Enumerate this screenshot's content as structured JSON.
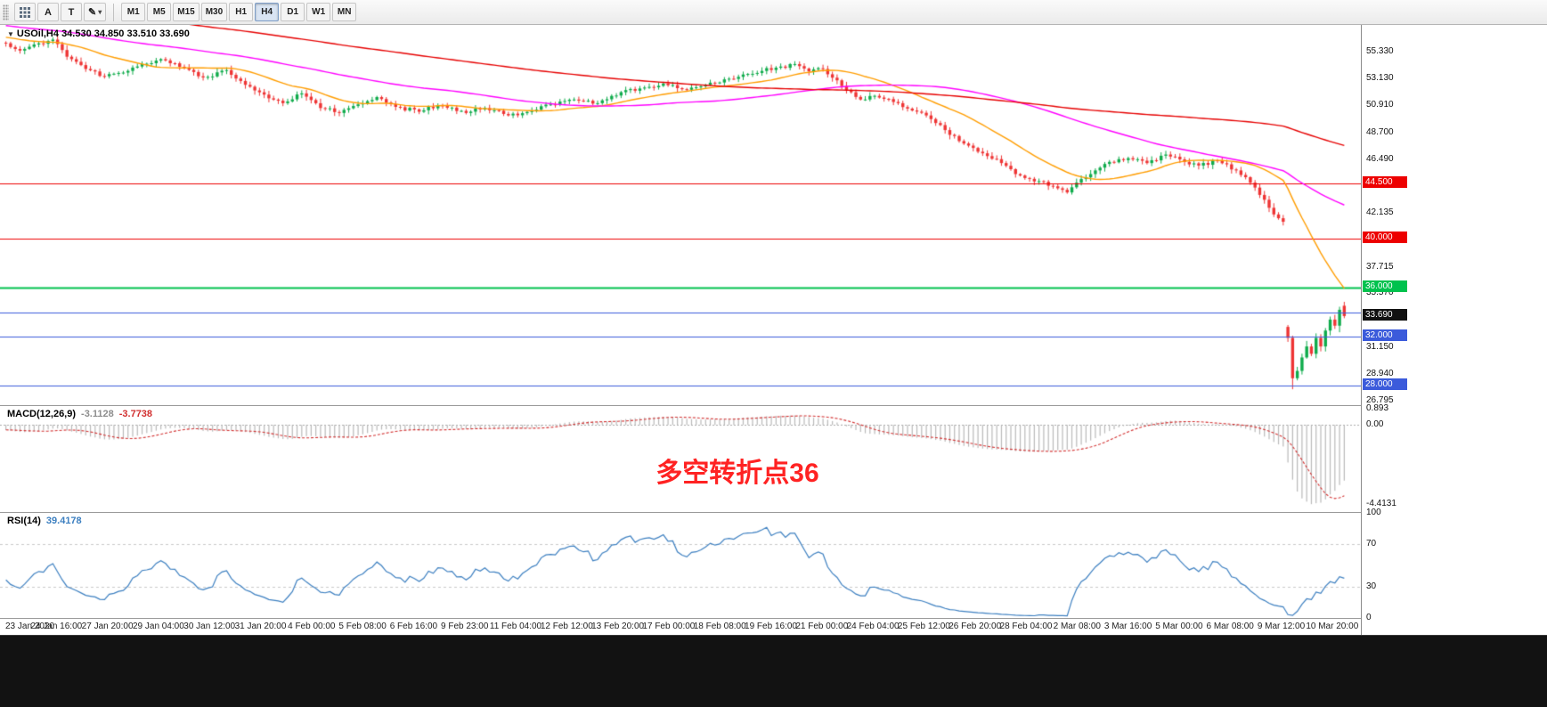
{
  "toolbar": {
    "tools": [
      {
        "name": "grid-tool"
      },
      {
        "name": "text-a-tool",
        "label": "A"
      },
      {
        "name": "text-t-tool",
        "label": "T"
      },
      {
        "name": "draw-tool",
        "glyph": "✎",
        "arrow": "▾"
      }
    ],
    "timeframes": [
      "M1",
      "M5",
      "M15",
      "M30",
      "H1",
      "H4",
      "D1",
      "W1",
      "MN"
    ],
    "active_timeframe": "H4"
  },
  "header": {
    "marker": "▼",
    "symbol": "USOil,H4",
    "ohlc": "34.530 34.850 33.510 33.690"
  },
  "chart_data": {
    "type": "candlestick",
    "symbol": "USOil",
    "timeframe": "H4",
    "title": "USOil,H4 34.530 34.850 33.510 33.690",
    "current_candle": {
      "open": 34.53,
      "high": 34.85,
      "low": 33.51,
      "close": 33.69
    },
    "price_axis": {
      "min": 26.4,
      "max": 57.5,
      "ticks": [
        {
          "label": "55.330",
          "value": 55.33
        },
        {
          "label": "53.130",
          "value": 53.13
        },
        {
          "label": "50.910",
          "value": 50.91
        },
        {
          "label": "48.700",
          "value": 48.7
        },
        {
          "label": "46.490",
          "value": 46.49
        },
        {
          "label": "42.135",
          "value": 42.135
        },
        {
          "label": "37.715",
          "value": 37.715
        },
        {
          "label": "35.570",
          "value": 35.57
        },
        {
          "label": "31.150",
          "value": 31.15
        },
        {
          "label": "28.940",
          "value": 28.94
        },
        {
          "label": "26.795",
          "value": 26.795
        }
      ]
    },
    "horizontal_lines": [
      {
        "price": 44.5,
        "color": "#ed0000",
        "width": 1,
        "badge": "44.500"
      },
      {
        "price": 40.0,
        "color": "#ed0000",
        "width": 1,
        "badge": "40.000"
      },
      {
        "price": 36.0,
        "color": "#00c24e",
        "width": 2,
        "badge": "36.000"
      },
      {
        "price": 34.0,
        "color": "#3b5bdb",
        "width": 1,
        "badge": null
      },
      {
        "price": 32.0,
        "color": "#3b5bdb",
        "width": 1,
        "badge": "32.000"
      },
      {
        "price": 28.0,
        "color": "#3b5bdb",
        "width": 1,
        "badge": "28.000"
      }
    ],
    "current_price_badge": {
      "label": "33.690",
      "value": 33.69,
      "bg": "#111111"
    },
    "moving_averages": [
      {
        "name": "fast-ma",
        "method": "sma",
        "period": 21,
        "color": "#ff9d00"
      },
      {
        "name": "mid-ma",
        "method": "sma",
        "period": 70,
        "color": "#ff00ff"
      },
      {
        "name": "slow-ma",
        "method": "sma",
        "period": 160,
        "color": "#e60000"
      }
    ],
    "candle_up_color": "#0fab4b",
    "candle_down_color": "#ee3434",
    "price_anchors": [
      [
        0,
        56.0
      ],
      [
        3,
        55.4
      ],
      [
        6,
        55.9
      ],
      [
        10,
        56.3
      ],
      [
        13,
        54.9
      ],
      [
        17,
        53.9
      ],
      [
        21,
        53.3
      ],
      [
        25,
        53.6
      ],
      [
        29,
        54.3
      ],
      [
        33,
        54.7
      ],
      [
        38,
        54.0
      ],
      [
        42,
        53.2
      ],
      [
        47,
        53.8
      ],
      [
        51,
        52.6
      ],
      [
        55,
        51.8
      ],
      [
        59,
        51.1
      ],
      [
        63,
        51.9
      ],
      [
        67,
        50.7
      ],
      [
        71,
        50.3
      ],
      [
        75,
        51.0
      ],
      [
        79,
        51.6
      ],
      [
        83,
        50.8
      ],
      [
        88,
        50.4
      ],
      [
        93,
        50.9
      ],
      [
        98,
        50.3
      ],
      [
        102,
        50.7
      ],
      [
        107,
        50.1
      ],
      [
        112,
        50.5
      ],
      [
        116,
        51.0
      ],
      [
        121,
        51.4
      ],
      [
        126,
        51.1
      ],
      [
        131,
        52.0
      ],
      [
        135,
        52.3
      ],
      [
        140,
        52.7
      ],
      [
        145,
        52.2
      ],
      [
        149,
        52.6
      ],
      [
        154,
        53.1
      ],
      [
        159,
        53.5
      ],
      [
        164,
        54.0
      ],
      [
        168,
        54.3
      ],
      [
        171,
        53.7
      ],
      [
        174,
        53.9
      ],
      [
        178,
        52.5
      ],
      [
        182,
        51.4
      ],
      [
        185,
        51.7
      ],
      [
        189,
        51.2
      ],
      [
        193,
        50.5
      ],
      [
        197,
        49.8
      ],
      [
        200,
        48.9
      ],
      [
        204,
        47.8
      ],
      [
        208,
        47.0
      ],
      [
        212,
        46.2
      ],
      [
        215,
        45.3
      ],
      [
        219,
        44.7
      ],
      [
        223,
        44.3
      ],
      [
        226,
        43.8
      ],
      [
        228,
        44.6
      ],
      [
        232,
        45.6
      ],
      [
        235,
        46.3
      ],
      [
        239,
        46.6
      ],
      [
        243,
        46.2
      ],
      [
        247,
        46.9
      ],
      [
        250,
        46.5
      ],
      [
        254,
        46.0
      ],
      [
        258,
        46.4
      ],
      [
        262,
        45.6
      ],
      [
        265,
        44.6
      ],
      [
        268,
        43.2
      ],
      [
        270,
        42.0
      ],
      [
        272,
        41.4
      ],
      [
        273,
        31.9
      ],
      [
        274,
        28.6
      ],
      [
        275,
        29.2
      ],
      [
        276,
        30.3
      ],
      [
        277,
        31.2
      ],
      [
        278,
        30.6
      ],
      [
        279,
        31.9
      ],
      [
        280,
        31.2
      ],
      [
        281,
        32.5
      ],
      [
        282,
        33.4
      ],
      [
        283,
        32.9
      ],
      [
        284,
        34.2
      ],
      [
        285,
        33.69
      ]
    ],
    "time_axis": {
      "labels": [
        "23 Jan 2020",
        "24 Jan 16:00",
        "27 Jan 20:00",
        "29 Jan 04:00",
        "30 Jan 12:00",
        "31 Jan 20:00",
        "4 Feb 00:00",
        "5 Feb 08:00",
        "6 Feb 16:00",
        "9 Feb 23:00",
        "11 Feb 04:00",
        "12 Feb 12:00",
        "13 Feb 20:00",
        "17 Feb 00:00",
        "18 Feb 08:00",
        "19 Feb 16:00",
        "21 Feb 00:00",
        "24 Feb 04:00",
        "25 Feb 12:00",
        "26 Feb 20:00",
        "28 Feb 04:00",
        "2 Mar 08:00",
        "3 Mar 16:00",
        "5 Mar 00:00",
        "6 Mar 08:00",
        "9 Mar 12:00",
        "10 Mar 20:00"
      ]
    },
    "macd": {
      "label": "MACD(12,26,9)",
      "main_value": "-3.1128",
      "signal_value": "-3.7738",
      "fast": 12,
      "slow": 26,
      "signal": 9,
      "range": [
        -4.85,
        1.05
      ],
      "axis_labels": [
        {
          "label": "0.893",
          "value": 0.893
        },
        {
          "label": "0.00",
          "value": 0
        },
        {
          "label": "-4.4131",
          "value": -4.4131
        }
      ],
      "histogram_color": "#b9b9b9",
      "signal_color": "#d23030"
    },
    "rsi": {
      "label": "RSI(14)",
      "value": "39.4178",
      "period": 14,
      "range": [
        0,
        100
      ],
      "levels": [
        30,
        70
      ],
      "axis_labels": [
        {
          "label": "100",
          "value": 100
        },
        {
          "label": "70",
          "value": 70
        },
        {
          "label": "30",
          "value": 30
        },
        {
          "label": "0",
          "value": 0
        }
      ],
      "line_color": "#3c7fc0",
      "level_color": "#c9c9c9"
    },
    "annotation": {
      "text": "多空转折点36",
      "color": "#ff2222"
    },
    "render": {
      "bars": 286,
      "pre_bars": 160,
      "pre_start": 63.5,
      "pre_end": 56.2
    }
  }
}
